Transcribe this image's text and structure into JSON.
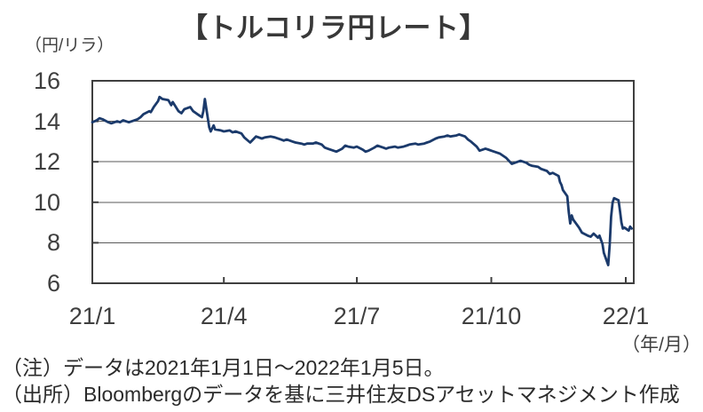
{
  "title": "【トルコリラ円レート】",
  "y_axis_unit": "（円/リラ）",
  "x_axis_unit": "（年/月）",
  "notes": {
    "note": "（注）データは2021年1月1日～2022年1月5日。",
    "source": "（出所）Bloombergのデータを基に三井住友DSアセットマネジメント作成"
  },
  "chart_data": {
    "type": "line",
    "title": "トルコリラ円レート",
    "xlabel": "年/月",
    "ylabel": "円/リラ",
    "ylim": [
      6,
      16
    ],
    "yticks": [
      16,
      14,
      12,
      10,
      8,
      6
    ],
    "gridlines": [
      14,
      12,
      10,
      8
    ],
    "grid": "horizontal",
    "legend_position": "none",
    "x_range": [
      "2021-01-01",
      "2022-01-05"
    ],
    "xticks": [
      {
        "label": "21/1",
        "day": 0
      },
      {
        "label": "21/4",
        "day": 90
      },
      {
        "label": "21/7",
        "day": 181
      },
      {
        "label": "21/10",
        "day": 273
      },
      {
        "label": "22/1",
        "day": 365
      }
    ],
    "line_color": "#1B3A6B",
    "grid_color": "#595959",
    "frame_color": "#3F3F3F",
    "series": [
      {
        "name": "トルコリラ円レート",
        "points": [
          [
            "2021-01-01",
            13.95
          ],
          [
            "2021-01-04",
            14.05
          ],
          [
            "2021-01-06",
            14.15
          ],
          [
            "2021-01-08",
            14.1
          ],
          [
            "2021-01-12",
            13.95
          ],
          [
            "2021-01-14",
            13.9
          ],
          [
            "2021-01-18",
            14.0
          ],
          [
            "2021-01-20",
            13.95
          ],
          [
            "2021-01-22",
            14.05
          ],
          [
            "2021-01-26",
            13.95
          ],
          [
            "2021-01-28",
            14.0
          ],
          [
            "2021-02-01",
            14.1
          ],
          [
            "2021-02-03",
            14.2
          ],
          [
            "2021-02-05",
            14.35
          ],
          [
            "2021-02-09",
            14.5
          ],
          [
            "2021-02-10",
            14.45
          ],
          [
            "2021-02-12",
            14.7
          ],
          [
            "2021-02-15",
            15.0
          ],
          [
            "2021-02-16",
            15.2
          ],
          [
            "2021-02-18",
            15.1
          ],
          [
            "2021-02-22",
            15.05
          ],
          [
            "2021-02-24",
            14.8
          ],
          [
            "2021-02-25",
            14.95
          ],
          [
            "2021-03-01",
            14.5
          ],
          [
            "2021-03-03",
            14.4
          ],
          [
            "2021-03-05",
            14.6
          ],
          [
            "2021-03-09",
            14.7
          ],
          [
            "2021-03-11",
            14.5
          ],
          [
            "2021-03-15",
            14.3
          ],
          [
            "2021-03-17",
            14.2
          ],
          [
            "2021-03-18",
            14.5
          ],
          [
            "2021-03-19",
            15.1
          ],
          [
            "2021-03-22",
            13.7
          ],
          [
            "2021-03-23",
            13.5
          ],
          [
            "2021-03-25",
            13.8
          ],
          [
            "2021-03-26",
            13.6
          ],
          [
            "2021-03-30",
            13.55
          ],
          [
            "2021-04-01",
            13.5
          ],
          [
            "2021-04-05",
            13.55
          ],
          [
            "2021-04-07",
            13.45
          ],
          [
            "2021-04-09",
            13.5
          ],
          [
            "2021-04-13",
            13.4
          ],
          [
            "2021-04-15",
            13.2
          ],
          [
            "2021-04-19",
            12.95
          ],
          [
            "2021-04-21",
            13.1
          ],
          [
            "2021-04-23",
            13.25
          ],
          [
            "2021-04-27",
            13.15
          ],
          [
            "2021-04-29",
            13.2
          ],
          [
            "2021-05-03",
            13.25
          ],
          [
            "2021-05-06",
            13.2
          ],
          [
            "2021-05-10",
            13.1
          ],
          [
            "2021-05-12",
            13.05
          ],
          [
            "2021-05-14",
            13.1
          ],
          [
            "2021-05-18",
            13.0
          ],
          [
            "2021-05-20",
            12.95
          ],
          [
            "2021-05-24",
            12.9
          ],
          [
            "2021-05-26",
            12.85
          ],
          [
            "2021-05-28",
            12.9
          ],
          [
            "2021-06-01",
            12.9
          ],
          [
            "2021-06-03",
            12.95
          ],
          [
            "2021-06-07",
            12.85
          ],
          [
            "2021-06-09",
            12.7
          ],
          [
            "2021-06-11",
            12.65
          ],
          [
            "2021-06-15",
            12.55
          ],
          [
            "2021-06-17",
            12.5
          ],
          [
            "2021-06-21",
            12.65
          ],
          [
            "2021-06-23",
            12.8
          ],
          [
            "2021-06-25",
            12.75
          ],
          [
            "2021-06-29",
            12.7
          ],
          [
            "2021-07-01",
            12.75
          ],
          [
            "2021-07-05",
            12.6
          ],
          [
            "2021-07-07",
            12.5
          ],
          [
            "2021-07-09",
            12.55
          ],
          [
            "2021-07-13",
            12.7
          ],
          [
            "2021-07-15",
            12.8
          ],
          [
            "2021-07-19",
            12.7
          ],
          [
            "2021-07-21",
            12.65
          ],
          [
            "2021-07-23",
            12.7
          ],
          [
            "2021-07-27",
            12.75
          ],
          [
            "2021-07-29",
            12.7
          ],
          [
            "2021-08-02",
            12.75
          ],
          [
            "2021-08-04",
            12.8
          ],
          [
            "2021-08-06",
            12.85
          ],
          [
            "2021-08-10",
            12.9
          ],
          [
            "2021-08-12",
            12.85
          ],
          [
            "2021-08-16",
            12.9
          ],
          [
            "2021-08-18",
            12.95
          ],
          [
            "2021-08-20",
            13.0
          ],
          [
            "2021-08-24",
            13.15
          ],
          [
            "2021-08-26",
            13.2
          ],
          [
            "2021-08-30",
            13.25
          ],
          [
            "2021-09-01",
            13.3
          ],
          [
            "2021-09-03",
            13.25
          ],
          [
            "2021-09-07",
            13.3
          ],
          [
            "2021-09-09",
            13.35
          ],
          [
            "2021-09-13",
            13.25
          ],
          [
            "2021-09-15",
            13.1
          ],
          [
            "2021-09-17",
            13.0
          ],
          [
            "2021-09-21",
            12.75
          ],
          [
            "2021-09-23",
            12.55
          ],
          [
            "2021-09-27",
            12.65
          ],
          [
            "2021-09-29",
            12.6
          ],
          [
            "2021-10-01",
            12.55
          ],
          [
            "2021-10-05",
            12.45
          ],
          [
            "2021-10-07",
            12.4
          ],
          [
            "2021-10-11",
            12.2
          ],
          [
            "2021-10-13",
            12.05
          ],
          [
            "2021-10-15",
            11.9
          ],
          [
            "2021-10-19",
            12.0
          ],
          [
            "2021-10-21",
            12.05
          ],
          [
            "2021-10-25",
            11.95
          ],
          [
            "2021-10-27",
            11.85
          ],
          [
            "2021-10-29",
            11.8
          ],
          [
            "2021-11-02",
            11.75
          ],
          [
            "2021-11-04",
            11.65
          ],
          [
            "2021-11-08",
            11.55
          ],
          [
            "2021-11-10",
            11.4
          ],
          [
            "2021-11-12",
            11.45
          ],
          [
            "2021-11-16",
            11.3
          ],
          [
            "2021-11-17",
            11.0
          ],
          [
            "2021-11-18",
            10.85
          ],
          [
            "2021-11-19",
            10.6
          ],
          [
            "2021-11-22",
            10.3
          ],
          [
            "2021-11-23",
            9.5
          ],
          [
            "2021-11-24",
            8.95
          ],
          [
            "2021-11-25",
            9.35
          ],
          [
            "2021-11-26",
            9.15
          ],
          [
            "2021-11-30",
            8.75
          ],
          [
            "2021-12-02",
            8.5
          ],
          [
            "2021-12-06",
            8.35
          ],
          [
            "2021-12-08",
            8.3
          ],
          [
            "2021-12-10",
            8.45
          ],
          [
            "2021-12-13",
            8.25
          ],
          [
            "2021-12-14",
            8.35
          ],
          [
            "2021-12-15",
            8.15
          ],
          [
            "2021-12-16",
            7.95
          ],
          [
            "2021-12-17",
            7.5
          ],
          [
            "2021-12-20",
            6.9
          ],
          [
            "2021-12-21",
            7.9
          ],
          [
            "2021-12-22",
            9.3
          ],
          [
            "2021-12-23",
            10.0
          ],
          [
            "2021-12-24",
            10.2
          ],
          [
            "2021-12-27",
            10.1
          ],
          [
            "2021-12-28",
            9.6
          ],
          [
            "2021-12-29",
            9.0
          ],
          [
            "2021-12-30",
            8.7
          ],
          [
            "2021-12-31",
            8.75
          ],
          [
            "2022-01-03",
            8.6
          ],
          [
            "2022-01-04",
            8.8
          ],
          [
            "2022-01-05",
            8.7
          ]
        ]
      }
    ]
  }
}
